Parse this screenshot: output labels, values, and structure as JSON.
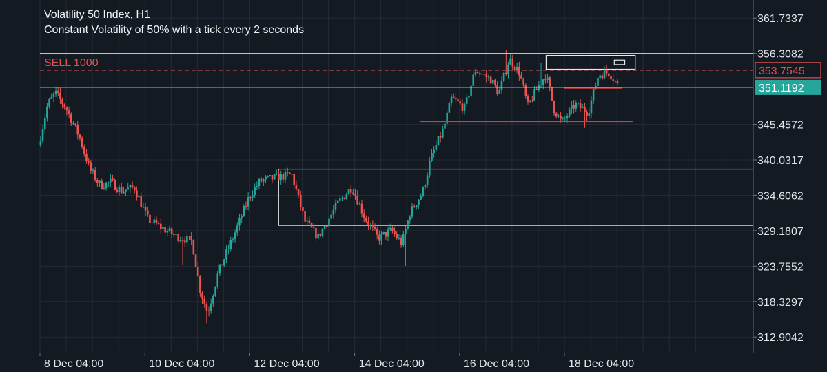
{
  "chart_data": {
    "type": "candlestick",
    "title": "Volatility 50 Index, H1",
    "subtitle": "Constant Volatility of 50% with a tick every 2 seconds",
    "colors": {
      "background": "#141a22",
      "grid": "#232b36",
      "up": "#26a69a",
      "down": "#ef5350",
      "order_line": "#e05252",
      "bid_line": "#26a69a",
      "box": "#e8e8e8",
      "support": "#d63a3a"
    },
    "ylim": [
      310.5,
      364.5
    ],
    "y_ticks": [
      "361.7337",
      "356.3082",
      "345.4572",
      "340.0317",
      "334.6062",
      "329.1807",
      "323.7552",
      "318.3297",
      "312.9042"
    ],
    "y_tick_values": [
      361.7337,
      356.3082,
      345.4572,
      340.0317,
      334.6062,
      329.1807,
      323.7552,
      318.3297,
      312.9042
    ],
    "x_ticks": [
      "8 Dec 04:00",
      "10 Dec 04:00",
      "12 Dec 04:00",
      "14 Dec 04:00",
      "16 Dec 04:00",
      "18 Dec 04:00"
    ],
    "x_tick_days": [
      8,
      10,
      12,
      14,
      16,
      18
    ],
    "x_range_days": [
      8,
      21.6
    ],
    "order_line": {
      "label": "SELL 1000",
      "price_label": "353.7545",
      "price": 353.7545
    },
    "bid_line": {
      "price_label": "351.1192",
      "price": 351.1192
    },
    "top_line": {
      "price": 356.3082
    },
    "keypoints": [
      [
        7.97,
        342.2
      ],
      [
        8.15,
        348.6
      ],
      [
        8.3,
        350.2
      ],
      [
        8.5,
        347.9
      ],
      [
        8.75,
        343.6
      ],
      [
        8.95,
        338.6
      ],
      [
        9.15,
        336.1
      ],
      [
        9.35,
        336.6
      ],
      [
        9.55,
        335.3
      ],
      [
        9.8,
        335.8
      ],
      [
        10.05,
        331.0
      ],
      [
        10.35,
        329.5
      ],
      [
        10.6,
        328.3
      ],
      [
        10.9,
        327.6
      ],
      [
        11.05,
        320.2
      ],
      [
        11.2,
        316.6
      ],
      [
        11.4,
        322.8
      ],
      [
        11.7,
        328.5
      ],
      [
        12.0,
        334.6
      ],
      [
        12.2,
        336.8
      ],
      [
        12.5,
        337.3
      ],
      [
        12.8,
        337.8
      ],
      [
        13.05,
        330.6
      ],
      [
        13.3,
        328.2
      ],
      [
        13.5,
        330.9
      ],
      [
        13.7,
        333.6
      ],
      [
        13.95,
        335.9
      ],
      [
        14.2,
        331.1
      ],
      [
        14.45,
        328.0
      ],
      [
        14.7,
        329.2
      ],
      [
        14.9,
        327.2
      ],
      [
        15.05,
        331.8
      ],
      [
        15.3,
        335.2
      ],
      [
        15.45,
        340.2
      ],
      [
        15.7,
        344.9
      ],
      [
        15.85,
        349.5
      ],
      [
        16.1,
        347.9
      ],
      [
        16.3,
        353.8
      ],
      [
        16.6,
        352.3
      ],
      [
        16.75,
        350.2
      ],
      [
        16.95,
        355.5
      ],
      [
        17.15,
        353.3
      ],
      [
        17.3,
        348.2
      ],
      [
        17.5,
        351.3
      ],
      [
        17.65,
        353.1
      ],
      [
        17.8,
        347.8
      ],
      [
        17.95,
        345.7
      ],
      [
        18.2,
        348.5
      ],
      [
        18.45,
        347.3
      ],
      [
        18.65,
        353.1
      ],
      [
        18.85,
        353.4
      ],
      [
        19.05,
        351.1
      ]
    ],
    "spikes": [
      [
        8.3,
        351.2
      ],
      [
        10.7,
        324.0
      ],
      [
        11.18,
        315.0
      ],
      [
        14.97,
        323.8
      ],
      [
        16.9,
        356.9
      ],
      [
        17.55,
        354.9
      ],
      [
        18.4,
        344.9
      ],
      [
        18.8,
        354.6
      ]
    ],
    "zones": [
      {
        "x_start_day": 12.55,
        "x_end_day": 21.6,
        "y_top": 338.6,
        "y_bottom": 330.0
      },
      {
        "x_start_day": 17.65,
        "x_end_day": 19.35,
        "y_top": 356.0,
        "y_bottom": 353.9
      },
      {
        "x_start_day": 18.95,
        "x_end_day": 19.15,
        "y_top": 355.3,
        "y_bottom": 354.6
      }
    ],
    "support_lines": [
      {
        "x_start_day": 15.25,
        "x_end_day": 19.3,
        "y": 345.9
      },
      {
        "x_start_day": 18.0,
        "x_end_day": 19.1,
        "y": 351.0
      }
    ]
  }
}
